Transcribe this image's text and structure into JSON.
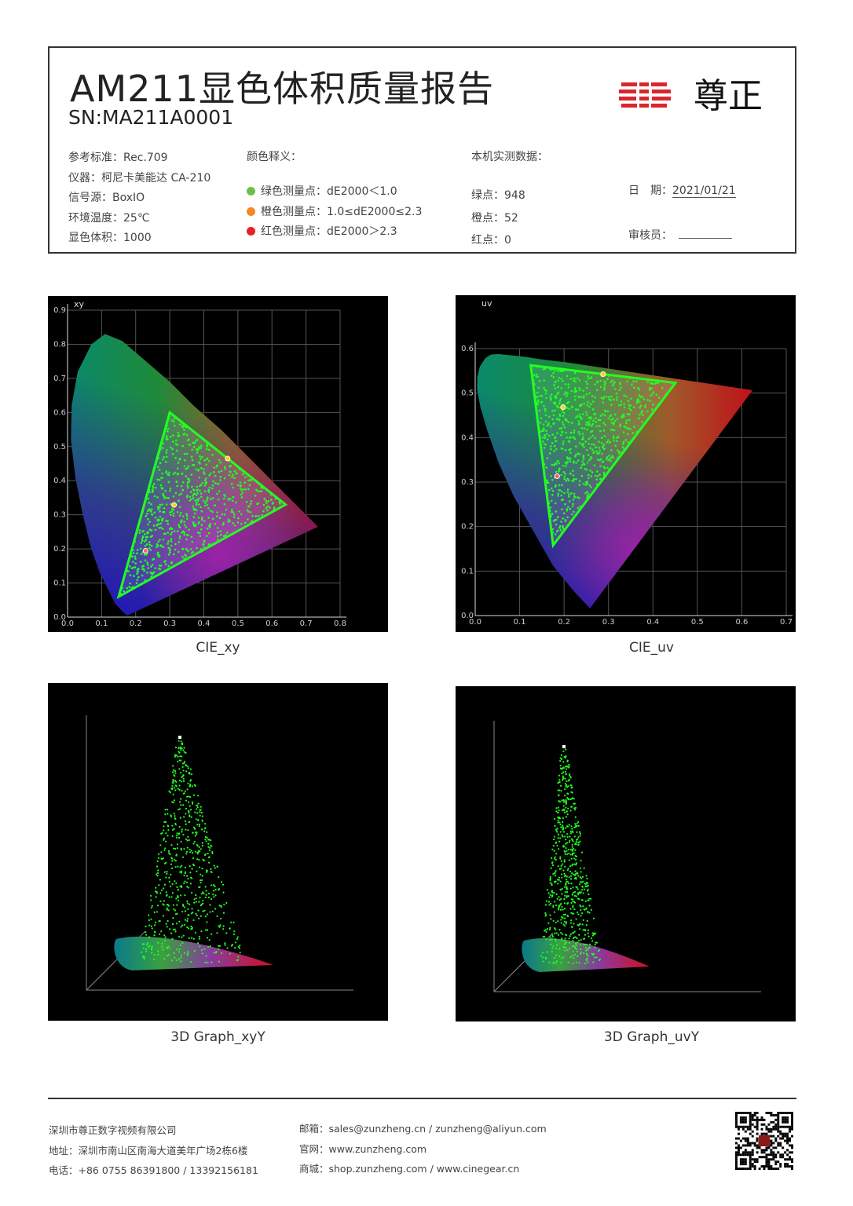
{
  "header": {
    "title": "AM211显色体积质量报告",
    "sn": "SN:MA211A0001",
    "logo_text": "尊正",
    "left": [
      {
        "label": "参考标准：",
        "value": "Rec.709"
      },
      {
        "label": "仪器：",
        "value": "柯尼卡美能达 CA-210"
      },
      {
        "label": "信号源：",
        "value": "BoxIO"
      },
      {
        "label": "环境温度：",
        "value": "25℃"
      },
      {
        "label": "显色体积：",
        "value": "1000"
      }
    ],
    "legend_title": "颜色释义：",
    "legend": [
      {
        "label": "绿色测量点：",
        "value": "dE2000＜1.0",
        "color": "#6cc04a"
      },
      {
        "label": "橙色测量点：",
        "value": "1.0≤dE2000≤2.3",
        "color": "#f08a24"
      },
      {
        "label": "红色测量点：",
        "value": "dE2000＞2.3",
        "color": "#e62222"
      }
    ],
    "measured_title": "本机实测数据：",
    "measured": [
      {
        "label": "绿点：",
        "value": "948"
      },
      {
        "label": "橙点：",
        "value": "52"
      },
      {
        "label": "红点：",
        "value": "0"
      }
    ],
    "date_label": "日　期：",
    "date_value": "2021/01/21",
    "reviewer_label": "审核员："
  },
  "chart_data": [
    {
      "type": "scatter",
      "title": "xy",
      "caption": "CIE_xy",
      "xlim": [
        0,
        0.8
      ],
      "ylim": [
        0,
        0.9
      ],
      "xticks": [
        "0.0",
        "0.1",
        "0.2",
        "0.3",
        "0.4",
        "0.5",
        "0.6",
        "0.7",
        "0.8"
      ],
      "yticks": [
        "0.0",
        "0.1",
        "0.2",
        "0.3",
        "0.4",
        "0.5",
        "0.6",
        "0.7",
        "0.8",
        "0.9"
      ],
      "gamut_triangle": {
        "R": [
          0.64,
          0.33
        ],
        "G": [
          0.3,
          0.6
        ],
        "B": [
          0.15,
          0.06
        ],
        "W": [
          0.3127,
          0.329
        ]
      },
      "point_counts": {
        "green": 948,
        "orange": 52,
        "red": 0
      }
    },
    {
      "type": "scatter",
      "title": "uv",
      "caption": "CIE_uv",
      "xlim": [
        0,
        0.7
      ],
      "ylim": [
        0,
        0.6
      ],
      "xticks": [
        "0.0",
        "0.1",
        "0.2",
        "0.3",
        "0.4",
        "0.5",
        "0.6",
        "0.7"
      ],
      "yticks": [
        "0.0",
        "0.1",
        "0.2",
        "0.3",
        "0.4",
        "0.5",
        "0.6"
      ],
      "gamut_triangle": {
        "R": [
          0.4507,
          0.5229
        ],
        "G": [
          0.125,
          0.5625
        ],
        "B": [
          0.1754,
          0.158
        ],
        "W": [
          0.1978,
          0.4683
        ]
      },
      "point_counts": {
        "green": 948,
        "orange": 52,
        "red": 0
      }
    }
  ],
  "graphs3d": [
    {
      "caption": "3D Graph_xyY"
    },
    {
      "caption": "3D Graph_uvY"
    }
  ],
  "footer": {
    "company": "深圳市尊正数字视频有限公司",
    "address": "地址：深圳市南山区南海大道美年广场2栋6楼",
    "phone": "电话：+86 0755 86391800 / 13392156181",
    "email": "邮箱：sales@zunzheng.cn / zunzheng@aliyun.com",
    "website": "官网：www.zunzheng.com",
    "shop": "商城：shop.zunzheng.com / www.cinegear.cn"
  }
}
